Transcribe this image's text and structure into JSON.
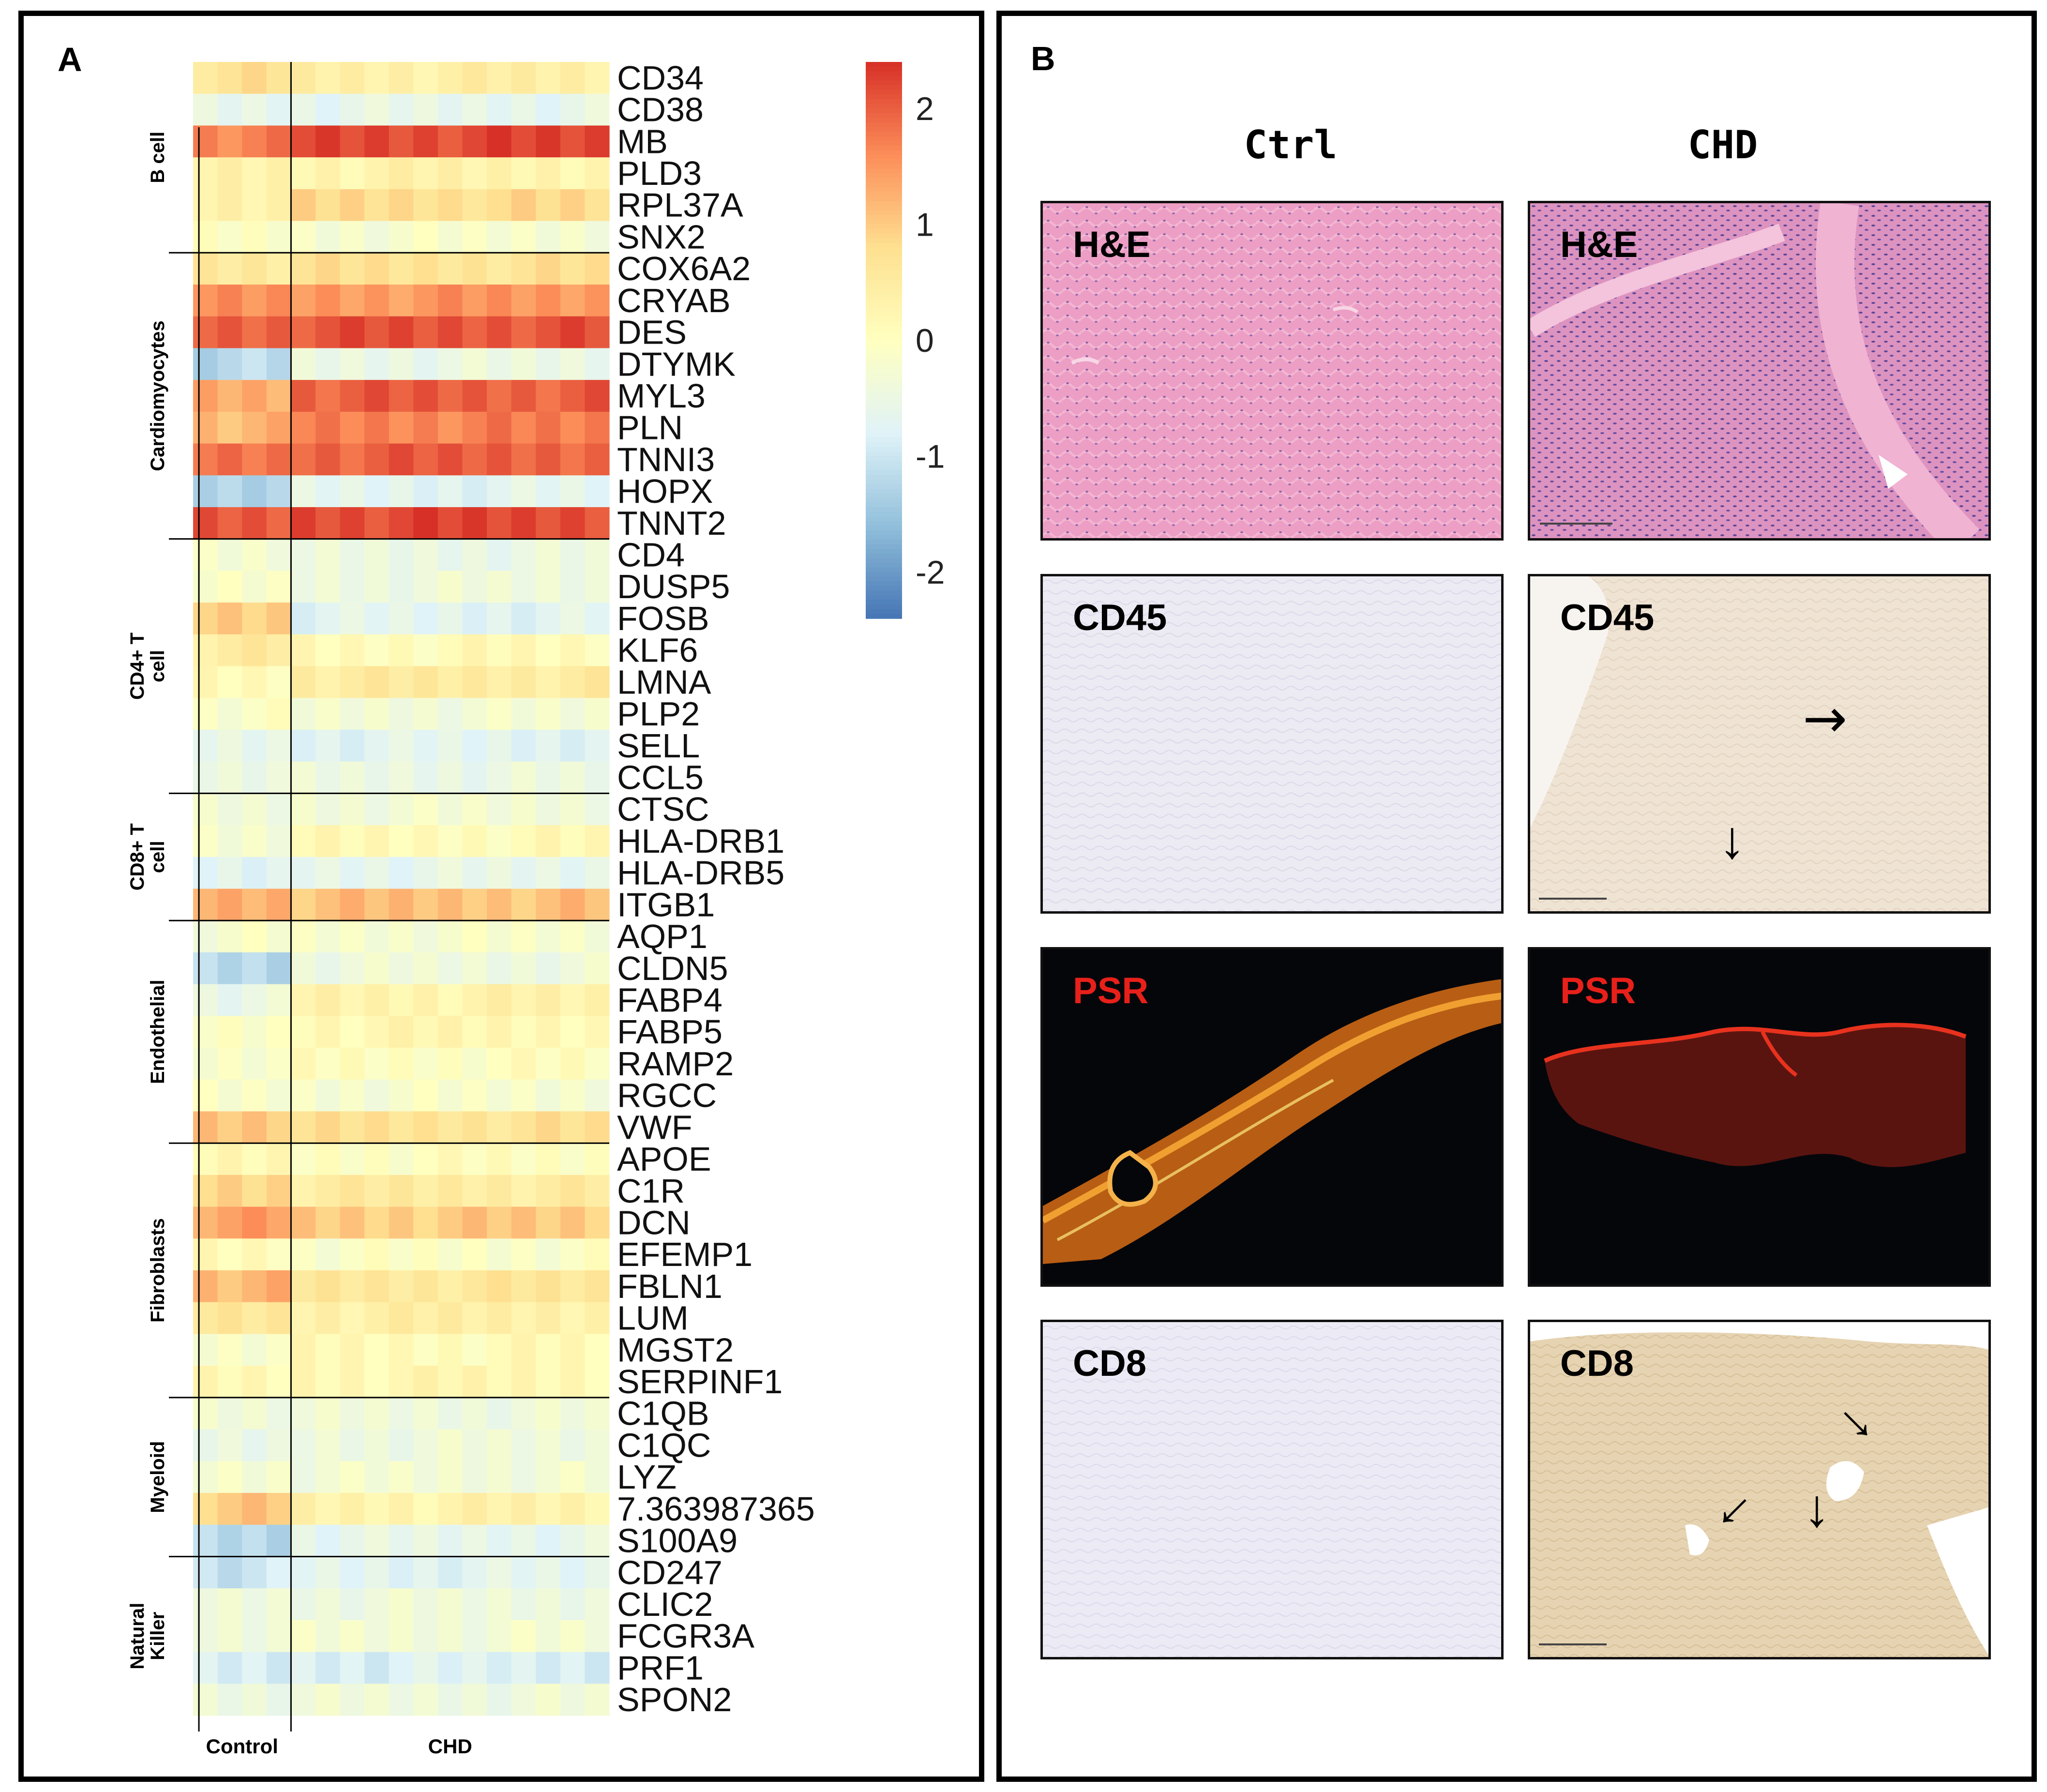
{
  "panel_a": {
    "letter": "A",
    "conditions": [
      "Control",
      "CHD"
    ],
    "colorbar": {
      "ticks": [
        "2",
        "1",
        "0",
        "-1",
        "-2"
      ],
      "range": [
        -2.4,
        2.4
      ],
      "colors": [
        "#4575b4",
        "#91bfdb",
        "#e0f3f8",
        "#ffffbf",
        "#fee090",
        "#fc8d59",
        "#d73027"
      ]
    },
    "chart_data": {
      "type": "heatmap",
      "title": "",
      "xlabel": "",
      "ylabel": "",
      "columns": {
        "Control": [
          "c1",
          "c2",
          "c3",
          "c4"
        ],
        "CHD": [
          "h1",
          "h2",
          "h3",
          "h4",
          "h5",
          "h6",
          "h7",
          "h8",
          "h9",
          "h10",
          "h11",
          "h12",
          "h13"
        ]
      },
      "groups": [
        {
          "name": "B cell",
          "genes": [
            "CD34",
            "CD38",
            "MB",
            "PLD3",
            "RPL37A",
            "SNX2"
          ]
        },
        {
          "name": "Cardiomyocytes",
          "genes": [
            "COX6A2",
            "CRYAB",
            "DES",
            "DTYMK",
            "MYL3",
            "PLN",
            "TNNI3",
            "HOPX",
            "TNNT2"
          ]
        },
        {
          "name": "CD4+ T cell",
          "genes": [
            "CD4",
            "DUSP5",
            "FOSB",
            "KLF6",
            "LMNA",
            "PLP2",
            "SELL",
            "CCL5"
          ]
        },
        {
          "name": "CD8+ T cell",
          "genes": [
            "CTSC",
            "HLA-DRB1",
            "HLA-DRB5",
            "ITGB1"
          ]
        },
        {
          "name": "Endothelial",
          "genes": [
            "AQP1",
            "CLDN5",
            "FABP4",
            "FABP5",
            "RAMP2",
            "RGCC",
            "VWF"
          ]
        },
        {
          "name": "Fibroblasts",
          "genes": [
            "APOE",
            "C1R",
            "DCN",
            "EFEMP1",
            "FBLN1",
            "LUM",
            "MGST2",
            "SERPINF1"
          ]
        },
        {
          "name": "Myeloid",
          "genes": [
            "C1QB",
            "C1QC",
            "LYZ",
            "7.363987365",
            "S100A9"
          ]
        },
        {
          "name": "Natural Killer",
          "genes": [
            "CD247",
            "CLIC2",
            "FCGR3A",
            "PRF1",
            "SPON2"
          ]
        }
      ],
      "rows": [
        {
          "gene": "CD34",
          "control": 0.7,
          "chd": 0.4
        },
        {
          "gene": "CD38",
          "control": -0.6,
          "chd": -0.6
        },
        {
          "gene": "MB",
          "control": 1.7,
          "chd": 2.2
        },
        {
          "gene": "PLD3",
          "control": 0.3,
          "chd": 0.3
        },
        {
          "gene": "RPL37A",
          "control": 0.4,
          "chd": 0.8
        },
        {
          "gene": "SNX2",
          "control": -0.1,
          "chd": -0.2
        },
        {
          "gene": "COX6A2",
          "control": 0.6,
          "chd": 0.7
        },
        {
          "gene": "CRYAB",
          "control": 1.5,
          "chd": 1.5
        },
        {
          "gene": "DES",
          "control": 2.0,
          "chd": 2.1
        },
        {
          "gene": "DTYMK",
          "control": -1.2,
          "chd": -0.5
        },
        {
          "gene": "MYL3",
          "control": 1.3,
          "chd": 2.0
        },
        {
          "gene": "PLN",
          "control": 1.2,
          "chd": 1.7
        },
        {
          "gene": "TNNI3",
          "control": 1.8,
          "chd": 2.0
        },
        {
          "gene": "HOPX",
          "control": -1.2,
          "chd": -0.7
        },
        {
          "gene": "TNNT2",
          "control": 2.0,
          "chd": 2.2
        },
        {
          "gene": "CD4",
          "control": -0.2,
          "chd": -0.5
        },
        {
          "gene": "DUSP5",
          "control": -0.2,
          "chd": -0.4
        },
        {
          "gene": "FOSB",
          "control": 1.0,
          "chd": -0.7
        },
        {
          "gene": "KLF6",
          "control": 0.5,
          "chd": 0.1
        },
        {
          "gene": "LMNA",
          "control": 0.1,
          "chd": 0.5
        },
        {
          "gene": "PLP2",
          "control": -0.1,
          "chd": -0.3
        },
        {
          "gene": "SELL",
          "control": -0.6,
          "chd": -0.7
        },
        {
          "gene": "CCL5",
          "control": -0.4,
          "chd": -0.5
        },
        {
          "gene": "CTSC",
          "control": -0.4,
          "chd": -0.3
        },
        {
          "gene": "HLA-DRB1",
          "control": -0.2,
          "chd": 0.1
        },
        {
          "gene": "HLA-DRB5",
          "control": -0.8,
          "chd": -0.6
        },
        {
          "gene": "ITGB1",
          "control": 1.3,
          "chd": 1.1
        },
        {
          "gene": "AQP1",
          "control": -0.2,
          "chd": -0.2
        },
        {
          "gene": "CLDN5",
          "control": -1.2,
          "chd": -0.4
        },
        {
          "gene": "FABP4",
          "control": -0.5,
          "chd": 0.3
        },
        {
          "gene": "FABP5",
          "control": -0.1,
          "chd": 0.2
        },
        {
          "gene": "RAMP2",
          "control": -0.1,
          "chd": 0.0
        },
        {
          "gene": "RGCC",
          "control": -0.2,
          "chd": -0.2
        },
        {
          "gene": "VWF",
          "control": 1.1,
          "chd": 0.7
        },
        {
          "gene": "APOE",
          "control": 0.1,
          "chd": 0.0
        },
        {
          "gene": "C1R",
          "control": 0.9,
          "chd": 0.5
        },
        {
          "gene": "DCN",
          "control": 1.4,
          "chd": 1.0
        },
        {
          "gene": "EFEMP1",
          "control": 0.1,
          "chd": -0.1
        },
        {
          "gene": "FBLN1",
          "control": 1.2,
          "chd": 0.6
        },
        {
          "gene": "LUM",
          "control": 0.6,
          "chd": 0.4
        },
        {
          "gene": "MGST2",
          "control": -0.1,
          "chd": 0.1
        },
        {
          "gene": "SERPINF1",
          "control": 0.1,
          "chd": 0.2
        },
        {
          "gene": "C1QB",
          "control": -0.3,
          "chd": -0.4
        },
        {
          "gene": "C1QC",
          "control": -0.6,
          "chd": -0.4
        },
        {
          "gene": "LYZ",
          "control": -0.2,
          "chd": -0.3
        },
        {
          "gene": "7.363987365",
          "control": 1.0,
          "chd": 0.3
        },
        {
          "gene": "S100A9",
          "control": -1.2,
          "chd": -0.6
        },
        {
          "gene": "CD247",
          "control": -1.0,
          "chd": -0.7
        },
        {
          "gene": "CLIC2",
          "control": -0.4,
          "chd": -0.4
        },
        {
          "gene": "FCGR3A",
          "control": -0.3,
          "chd": -0.3
        },
        {
          "gene": "PRF1",
          "control": -0.9,
          "chd": -0.8
        },
        {
          "gene": "SPON2",
          "control": -0.4,
          "chd": -0.4
        }
      ]
    }
  },
  "panel_b": {
    "letter": "B",
    "col_heads": [
      "Ctrl",
      "CHD"
    ],
    "rows": [
      {
        "label": "H&E",
        "label_color": "#000000"
      },
      {
        "label": "CD45",
        "label_color": "#000000"
      },
      {
        "label": "PSR",
        "label_color": "#e8201a"
      },
      {
        "label": "CD8",
        "label_color": "#000000"
      }
    ]
  }
}
